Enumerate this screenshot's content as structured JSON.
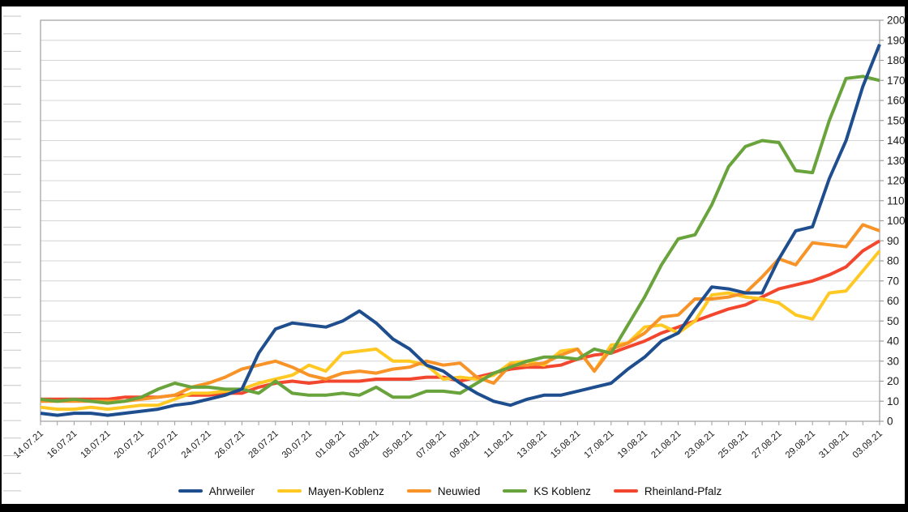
{
  "chart_data": {
    "type": "line",
    "title": "",
    "xlabel": "",
    "ylabel": "",
    "grid": true,
    "legend_position": "bottom-center",
    "x": [
      "14.07.21",
      "15.07.21",
      "16.07.21",
      "17.07.21",
      "18.07.21",
      "19.07.21",
      "20.07.21",
      "21.07.21",
      "22.07.21",
      "23.07.21",
      "24.07.21",
      "25.07.21",
      "26.07.21",
      "27.07.21",
      "28.07.21",
      "29.07.21",
      "30.07.21",
      "31.07.21",
      "01.08.21",
      "02.08.21",
      "03.08.21",
      "04.08.21",
      "05.08.21",
      "06.08.21",
      "07.08.21",
      "08.08.21",
      "09.08.21",
      "10.08.21",
      "11.08.21",
      "12.08.21",
      "13.08.21",
      "14.08.21",
      "15.08.21",
      "16.08.21",
      "17.08.21",
      "18.08.21",
      "19.08.21",
      "20.08.21",
      "21.08.21",
      "22.08.21",
      "23.08.21",
      "24.08.21",
      "25.08.21",
      "26.08.21",
      "27.08.21",
      "28.08.21",
      "29.08.21",
      "30.08.21",
      "31.08.21",
      "01.09.21",
      "03.09.21"
    ],
    "x_tick_label_every": 2,
    "y_axis": {
      "min": 0,
      "max": 200,
      "step": 10,
      "side": "right",
      "tick_labels": [
        "0",
        "10",
        "20",
        "30",
        "40",
        "50",
        "60",
        "70",
        "80",
        "90",
        "100",
        "110",
        "120",
        "130",
        "140",
        "150",
        "160",
        "170",
        "180",
        "190",
        "200"
      ]
    },
    "series": [
      {
        "name": "Ahrweiler",
        "color": "#1F4E8E",
        "values": [
          4,
          3,
          4,
          4,
          3,
          4,
          5,
          6,
          8,
          9,
          11,
          13,
          16,
          34,
          46,
          49,
          48,
          47,
          50,
          55,
          49,
          41,
          36,
          28,
          25,
          19,
          14,
          10,
          8,
          11,
          13,
          13,
          15,
          17,
          19,
          26,
          32,
          40,
          44,
          56,
          67,
          66,
          64,
          64,
          81,
          95,
          97,
          121,
          140,
          167,
          188
        ]
      },
      {
        "name": "Mayen-Koblenz",
        "color": "#FFC822",
        "values": [
          7,
          6,
          6,
          7,
          6,
          7,
          8,
          8,
          11,
          14,
          14,
          15,
          16,
          19,
          21,
          23,
          28,
          25,
          34,
          35,
          36,
          30,
          30,
          28,
          21,
          22,
          21,
          23,
          29,
          30,
          28,
          35,
          36,
          25,
          38,
          39,
          47,
          48,
          44,
          50,
          63,
          64,
          62,
          61,
          59,
          53,
          51,
          64,
          65,
          75,
          85
        ]
      },
      {
        "name": "Neuwied",
        "color": "#F79327",
        "values": [
          10,
          10,
          10,
          10,
          10,
          10,
          11,
          12,
          13,
          17,
          19,
          22,
          26,
          28,
          30,
          27,
          23,
          21,
          24,
          25,
          24,
          26,
          27,
          30,
          28,
          29,
          22,
          19,
          28,
          28,
          29,
          33,
          36,
          25,
          36,
          39,
          44,
          52,
          53,
          61,
          61,
          62,
          64,
          72,
          81,
          78,
          89,
          88,
          87,
          98,
          95
        ]
      },
      {
        "name": "KS Koblenz",
        "color": "#69A33B",
        "values": [
          11,
          10,
          11,
          10,
          9,
          10,
          12,
          16,
          19,
          17,
          17,
          16,
          16,
          14,
          20,
          14,
          13,
          13,
          14,
          13,
          17,
          12,
          12,
          15,
          15,
          14,
          19,
          24,
          27,
          30,
          32,
          32,
          31,
          36,
          34,
          48,
          62,
          78,
          91,
          93,
          108,
          127,
          137,
          140,
          139,
          125,
          124,
          150,
          171,
          172,
          170
        ]
      },
      {
        "name": "Rheinland-Pfalz",
        "color": "#F2472E",
        "values": [
          11,
          11,
          11,
          11,
          11,
          12,
          12,
          12,
          13,
          13,
          13,
          14,
          14,
          17,
          19,
          20,
          19,
          20,
          20,
          20,
          21,
          21,
          21,
          22,
          22,
          20,
          22,
          24,
          26,
          27,
          27,
          28,
          31,
          33,
          34,
          37,
          40,
          44,
          47,
          50,
          53,
          56,
          58,
          62,
          66,
          68,
          70,
          73,
          77,
          85,
          90
        ]
      }
    ]
  },
  "frame": {
    "outer_background": "#000000",
    "chart_background": "#FFFFFF",
    "gridline_color": "#D4D4D4",
    "border_color": "#9E9E9E",
    "axis_text_color": "#1A1A1A"
  }
}
